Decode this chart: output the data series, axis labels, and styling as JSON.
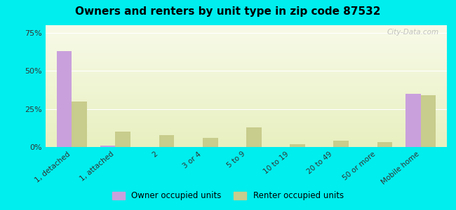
{
  "title": "Owners and renters by unit type in zip code 87532",
  "categories": [
    "1, detached",
    "1, attached",
    "2",
    "3 or 4",
    "5 to 9",
    "10 to 19",
    "20 to 49",
    "50 or more",
    "Mobile home"
  ],
  "owner_values": [
    63,
    1,
    0,
    0,
    0,
    0,
    0,
    0,
    35
  ],
  "renter_values": [
    30,
    10,
    8,
    6,
    13,
    2,
    4,
    3,
    34
  ],
  "owner_color": "#c9a0dc",
  "renter_color": "#c8cc8c",
  "background_color": "#00eeee",
  "yticks": [
    0,
    25,
    50,
    75
  ],
  "ylim": [
    0,
    80
  ],
  "bar_width": 0.35,
  "watermark": "City-Data.com",
  "legend_owner": "Owner occupied units",
  "legend_renter": "Renter occupied units"
}
